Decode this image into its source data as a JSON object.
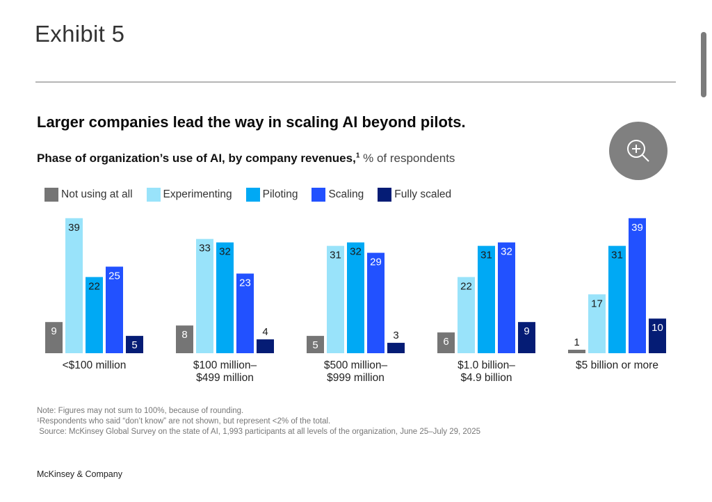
{
  "header": {
    "exhibit_label": "Exhibit 5"
  },
  "zoom_button": {
    "icon": "zoom-in-icon"
  },
  "chart_data": {
    "type": "bar",
    "title": "Larger companies lead the way in scaling AI beyond pilots.",
    "subtitle_bold": "Phase of organization’s use of AI, by company revenues,",
    "subtitle_footnote": "1",
    "subtitle_unit": "% of respondents",
    "xlabel": "",
    "ylabel": "% of respondents",
    "ylim": [
      0,
      40
    ],
    "grid": false,
    "legend_position": "top-left",
    "categories": [
      [
        "<$100 million"
      ],
      [
        "$100 million–",
        "$499 million"
      ],
      [
        "$500 million–",
        "$999 million"
      ],
      [
        "$1.0 billion–",
        "$4.9 billion"
      ],
      [
        "$5 billion or more"
      ]
    ],
    "series": [
      {
        "name": "Not using at all",
        "color": "#757575",
        "values": [
          9,
          8,
          5,
          6,
          1
        ]
      },
      {
        "name": "Experimenting",
        "color": "#99e3fa",
        "values": [
          39,
          33,
          31,
          22,
          17
        ]
      },
      {
        "name": "Piloting",
        "color": "#00a9f4",
        "values": [
          22,
          32,
          32,
          31,
          31
        ]
      },
      {
        "name": "Scaling",
        "color": "#2251ff",
        "values": [
          25,
          23,
          29,
          32,
          39
        ]
      },
      {
        "name": "Fully scaled",
        "color": "#051c75",
        "values": [
          5,
          4,
          3,
          9,
          10
        ]
      }
    ]
  },
  "notes": {
    "note": "Note: Figures may not sum to 100%, because of rounding.",
    "footnote": "¹Respondents who said “don’t know” are not shown, but represent <2% of the total.",
    "source": " Source: McKinsey Global Survey on the state of AI, 1,993 participants at all levels of the organization, June 25–July 29, 2025"
  },
  "footer": {
    "brand": "McKinsey & Company"
  }
}
